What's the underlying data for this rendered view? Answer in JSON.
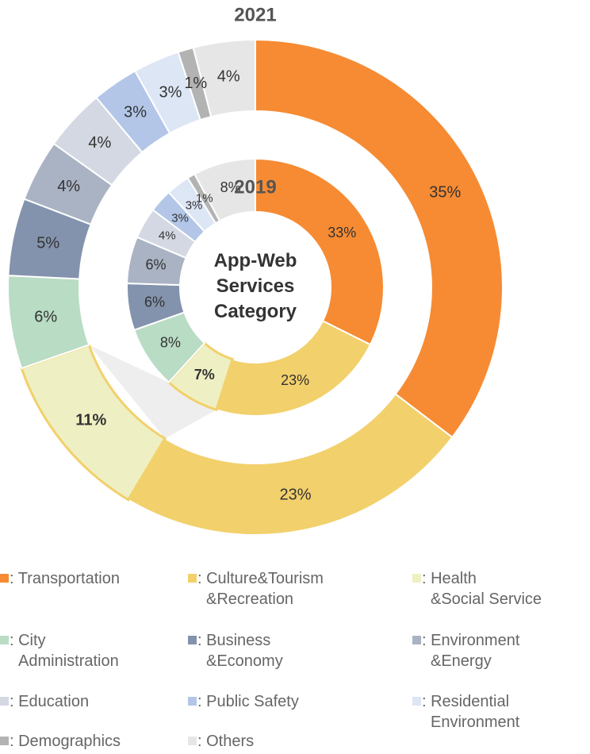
{
  "chart_data": {
    "type": "donut",
    "title": "App-Web\nServices\nCategory",
    "categories": [
      ": Transportation",
      ": Culture&Tourism\n&Recreation",
      ": Health\n&Social Service",
      ": City\nAdministration",
      ": Business\n&Economy",
      ": Environment\n&Energy",
      ": Education",
      ": Public Safety",
      ": Residential\nEnvironment",
      ": Demographics",
      ": Others"
    ],
    "colors": [
      "#f68b33",
      "#f2d06b",
      "#eef0c3",
      "#b9dcc4",
      "#8393ad",
      "#a9b3c4",
      "#d3d8e2",
      "#b3c6e8",
      "#dde6f5",
      "#b3b3b3",
      "#e6e6e6"
    ],
    "series": [
      {
        "name": "2021",
        "values": [
          35,
          23,
          11,
          6,
          5,
          4,
          4,
          3,
          3,
          1,
          4
        ],
        "value_labels": [
          "35%",
          "23%",
          "11%",
          "6%",
          "5%",
          "4%",
          "4%",
          "3%",
          "3%",
          "1%",
          "4%"
        ]
      },
      {
        "name": "2019",
        "values": [
          33,
          23,
          7,
          8,
          6,
          6,
          4,
          3,
          3,
          1,
          8
        ],
        "value_labels": [
          "33%",
          "23%",
          "7%",
          "8%",
          "6%",
          "6%",
          "4%",
          "3%",
          "3%",
          "1%",
          "8%"
        ]
      }
    ]
  }
}
